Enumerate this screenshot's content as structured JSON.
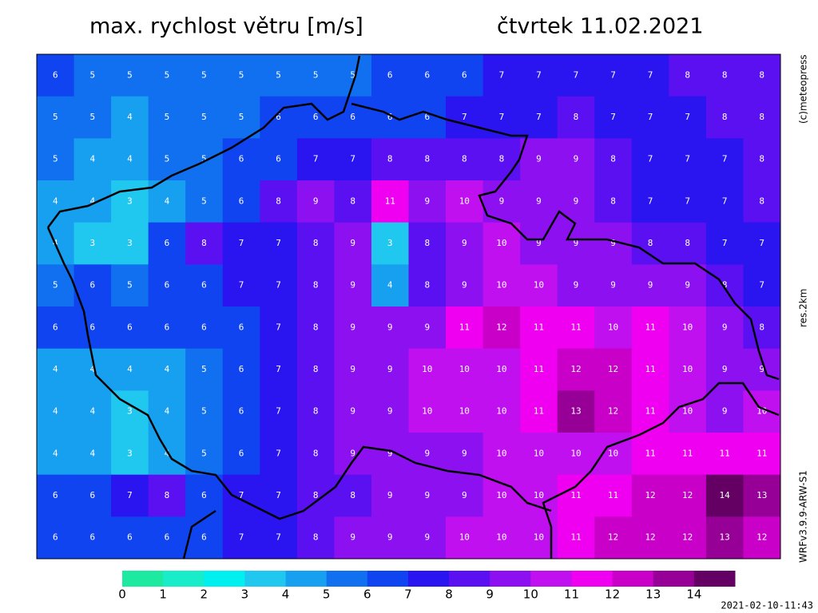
{
  "header": {
    "title": "max. rychlost větru [m/s]",
    "date": "čtvrtek 11.02.2021"
  },
  "side_labels": {
    "copyright": "(c)meteopress",
    "resolution": "res.2km",
    "model": "WRFv3.9.9-ARW-S1"
  },
  "field": {
    "rows": [
      [
        6,
        5,
        5,
        5,
        5,
        5,
        5,
        5,
        5,
        6,
        6,
        6,
        7,
        7,
        7,
        7,
        7,
        8,
        8,
        8
      ],
      [
        5,
        5,
        4,
        5,
        5,
        5,
        6,
        6,
        6,
        6,
        6,
        7,
        7,
        7,
        8,
        7,
        7,
        7,
        8,
        8
      ],
      [
        5,
        4,
        4,
        5,
        5,
        6,
        6,
        7,
        7,
        8,
        8,
        8,
        8,
        9,
        9,
        8,
        7,
        7,
        7,
        8
      ],
      [
        4,
        4,
        3,
        4,
        5,
        6,
        8,
        9,
        8,
        11,
        9,
        10,
        9,
        9,
        9,
        8,
        7,
        7,
        7,
        8
      ],
      [
        4,
        3,
        3,
        6,
        8,
        7,
        7,
        8,
        9,
        3,
        8,
        9,
        10,
        9,
        9,
        9,
        8,
        8,
        7,
        7
      ],
      [
        5,
        6,
        5,
        6,
        6,
        7,
        7,
        8,
        9,
        4,
        8,
        9,
        10,
        10,
        9,
        9,
        9,
        9,
        8,
        7
      ],
      [
        6,
        6,
        6,
        6,
        6,
        6,
        7,
        8,
        9,
        9,
        9,
        11,
        12,
        11,
        11,
        10,
        11,
        10,
        9,
        8
      ],
      [
        4,
        4,
        4,
        4,
        5,
        6,
        7,
        8,
        9,
        9,
        10,
        10,
        10,
        11,
        12,
        12,
        11,
        10,
        9,
        9
      ],
      [
        4,
        4,
        3,
        4,
        5,
        6,
        7,
        8,
        9,
        9,
        10,
        10,
        10,
        11,
        13,
        12,
        11,
        10,
        9,
        10
      ],
      [
        4,
        4,
        3,
        4,
        5,
        6,
        7,
        8,
        9,
        9,
        9,
        9,
        10,
        10,
        10,
        10,
        11,
        11,
        11,
        11
      ],
      [
        6,
        6,
        7,
        8,
        6,
        7,
        7,
        8,
        8,
        9,
        9,
        9,
        10,
        10,
        11,
        11,
        12,
        12,
        14,
        13
      ],
      [
        6,
        6,
        6,
        6,
        6,
        7,
        7,
        8,
        9,
        9,
        9,
        10,
        10,
        10,
        11,
        12,
        12,
        12,
        13,
        12
      ]
    ]
  },
  "legend": {
    "labels": [
      0,
      1,
      2,
      3,
      4,
      5,
      6,
      7,
      8,
      9,
      10,
      11,
      12,
      13,
      14
    ],
    "colors": [
      "#1de9a0",
      "#18ecc8",
      "#00f0f0",
      "#20c8f0",
      "#18a0f0",
      "#1070f0",
      "#1044f0",
      "#2a14f0",
      "#5a10f0",
      "#8c10f0",
      "#c010f0",
      "#f000f0",
      "#c800c8",
      "#960096",
      "#640064"
    ]
  },
  "timestamp": "2021-02-10-11:43"
}
